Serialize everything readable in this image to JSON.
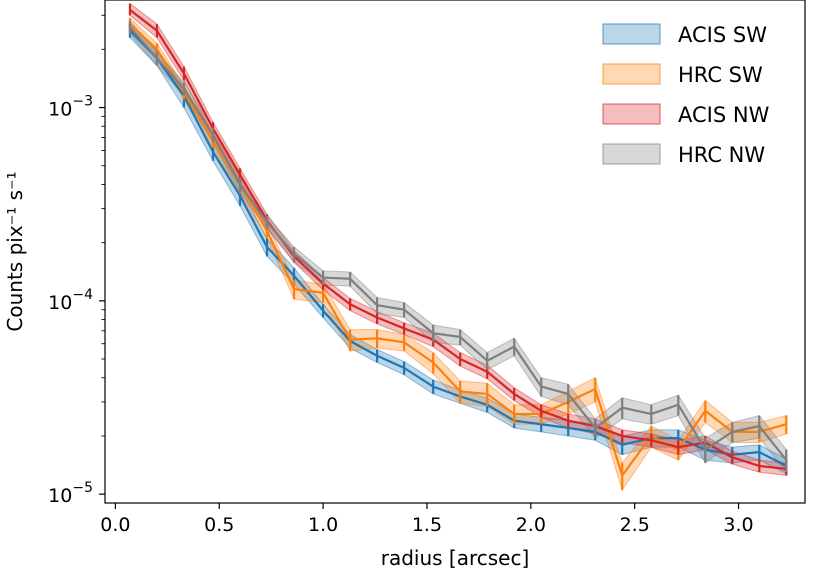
{
  "chart_data": {
    "type": "line",
    "title": "",
    "xlabel": "radius [arcsec]",
    "ylabel": "Counts pix⁻¹ s⁻¹",
    "yscale": "log",
    "xlim": [
      -0.05,
      3.32
    ],
    "ylim": [
      9e-06,
      0.0036
    ],
    "xticks": [
      0.0,
      0.5,
      1.0,
      1.5,
      2.0,
      2.5,
      3.0
    ],
    "xtick_labels": [
      "0.0",
      "0.5",
      "1.0",
      "1.5",
      "2.0",
      "2.5",
      "3.0"
    ],
    "yticks": [
      1e-05,
      0.0001,
      0.001
    ],
    "ytick_labels": [
      {
        "base": "10",
        "exp": "−5"
      },
      {
        "base": "10",
        "exp": "−4"
      },
      {
        "base": "10",
        "exp": "−3"
      }
    ],
    "grid": false,
    "legend_position": "top-right",
    "series": [
      {
        "name": "ACIS SW",
        "color": "#1f77b4",
        "x": [
          0.07,
          0.2,
          0.33,
          0.47,
          0.6,
          0.73,
          0.86,
          1.0,
          1.13,
          1.26,
          1.39,
          1.53,
          1.66,
          1.79,
          1.92,
          2.05,
          2.18,
          2.31,
          2.44,
          2.58,
          2.71,
          2.84,
          2.97,
          3.1,
          3.23
        ],
        "y": [
          0.0025,
          0.0018,
          0.00115,
          0.00059,
          0.00035,
          0.00019,
          0.000135,
          8.9e-05,
          6.2e-05,
          5.2e-05,
          4.5e-05,
          3.6e-05,
          3.2e-05,
          2.9e-05,
          2.4e-05,
          2.3e-05,
          2.2e-05,
          2.1e-05,
          1.8e-05,
          1.95e-05,
          1.95e-05,
          1.7e-05,
          1.6e-05,
          1.65e-05,
          1.4e-05
        ],
        "lower": [
          0.0023,
          0.00165,
          0.001,
          0.00053,
          0.00031,
          0.00017,
          0.000122,
          8.2e-05,
          5.7e-05,
          4.8e-05,
          4.15e-05,
          3.3e-05,
          2.95e-05,
          2.65e-05,
          2.2e-05,
          2.1e-05,
          2e-05,
          1.9e-05,
          1.6e-05,
          1.75e-05,
          1.75e-05,
          1.5e-05,
          1.45e-05,
          1.5e-05,
          1.28e-05
        ],
        "upper": [
          0.0027,
          0.00195,
          0.0013,
          0.00065,
          0.00039,
          0.00021,
          0.000148,
          9.6e-05,
          6.7e-05,
          5.6e-05,
          4.85e-05,
          3.9e-05,
          3.45e-05,
          3.15e-05,
          2.6e-05,
          2.5e-05,
          2.4e-05,
          2.3e-05,
          2e-05,
          2.15e-05,
          2.15e-05,
          1.9e-05,
          1.75e-05,
          1.8e-05,
          1.52e-05
        ]
      },
      {
        "name": "HRC SW",
        "color": "#ff7f0e",
        "x": [
          0.07,
          0.2,
          0.33,
          0.47,
          0.6,
          0.73,
          0.86,
          1.0,
          1.13,
          1.26,
          1.39,
          1.53,
          1.66,
          1.79,
          1.92,
          2.05,
          2.18,
          2.31,
          2.44,
          2.58,
          2.71,
          2.84,
          2.97,
          3.1,
          3.23
        ],
        "y": [
          0.0027,
          0.002,
          0.0012,
          0.00068,
          0.0004,
          0.00023,
          0.000115,
          0.00011,
          6.3e-05,
          6.4e-05,
          6.1e-05,
          4.8e-05,
          3.4e-05,
          3.3e-05,
          2.6e-05,
          2.6e-05,
          3e-05,
          3.5e-05,
          1.25e-05,
          2e-05,
          1.7e-05,
          2.7e-05,
          2.1e-05,
          2.1e-05,
          2.3e-05
        ],
        "lower": [
          0.0025,
          0.00185,
          0.0011,
          0.00062,
          0.00036,
          0.00021,
          0.000102,
          9.8e-05,
          5.5e-05,
          5.7e-05,
          5.5e-05,
          4.2e-05,
          2.95e-05,
          2.85e-05,
          2.3e-05,
          2.3e-05,
          2.6e-05,
          3e-05,
          1.05e-05,
          1.75e-05,
          1.5e-05,
          2.35e-05,
          1.85e-05,
          1.85e-05,
          2.05e-05
        ],
        "upper": [
          0.0029,
          0.00215,
          0.0013,
          0.00074,
          0.00044,
          0.00025,
          0.000128,
          0.000122,
          7.1e-05,
          7.1e-05,
          6.7e-05,
          5.4e-05,
          3.85e-05,
          3.75e-05,
          2.9e-05,
          2.9e-05,
          3.4e-05,
          4e-05,
          1.45e-05,
          2.25e-05,
          1.9e-05,
          3.05e-05,
          2.35e-05,
          2.35e-05,
          2.55e-05
        ]
      },
      {
        "name": "ACIS NW",
        "color": "#d62728",
        "x": [
          0.07,
          0.2,
          0.33,
          0.47,
          0.6,
          0.73,
          0.86,
          1.0,
          1.13,
          1.26,
          1.39,
          1.53,
          1.66,
          1.79,
          1.92,
          2.05,
          2.18,
          2.31,
          2.44,
          2.58,
          2.71,
          2.84,
          2.97,
          3.1,
          3.23
        ],
        "y": [
          0.0032,
          0.0025,
          0.0015,
          0.00078,
          0.00045,
          0.00026,
          0.00017,
          0.000123,
          9.6e-05,
          8.2e-05,
          7.2e-05,
          6.3e-05,
          5e-05,
          4.3e-05,
          3.3e-05,
          2.7e-05,
          2.4e-05,
          2.25e-05,
          2e-05,
          1.9e-05,
          1.75e-05,
          1.85e-05,
          1.55e-05,
          1.4e-05,
          1.35e-05
        ],
        "lower": [
          0.003,
          0.0023,
          0.00138,
          0.00072,
          0.000415,
          0.00024,
          0.000158,
          0.000114,
          8.9e-05,
          7.6e-05,
          6.7e-05,
          5.8e-05,
          4.6e-05,
          3.95e-05,
          3.05e-05,
          2.5e-05,
          2.2e-05,
          2.05e-05,
          1.85e-05,
          1.75e-05,
          1.6e-05,
          1.7e-05,
          1.43e-05,
          1.3e-05,
          1.25e-05
        ],
        "upper": [
          0.00345,
          0.0027,
          0.00163,
          0.00084,
          0.000485,
          0.00028,
          0.000182,
          0.000132,
          0.000103,
          8.8e-05,
          7.7e-05,
          6.8e-05,
          5.4e-05,
          4.65e-05,
          3.55e-05,
          2.9e-05,
          2.6e-05,
          2.45e-05,
          2.15e-05,
          2.05e-05,
          1.9e-05,
          2e-05,
          1.67e-05,
          1.5e-05,
          1.45e-05
        ]
      },
      {
        "name": "HRC NW",
        "color": "#7f7f7f",
        "x": [
          0.07,
          0.2,
          0.33,
          0.47,
          0.6,
          0.73,
          0.86,
          1.0,
          1.13,
          1.26,
          1.39,
          1.53,
          1.66,
          1.79,
          1.92,
          2.05,
          2.18,
          2.31,
          2.44,
          2.58,
          2.71,
          2.84,
          2.97,
          3.1,
          3.23
        ],
        "y": [
          0.0026,
          0.0018,
          0.00125,
          0.00072,
          0.0004,
          0.000255,
          0.000175,
          0.000132,
          0.00013,
          9.5e-05,
          9e-05,
          6.8e-05,
          6.5e-05,
          4.9e-05,
          5.8e-05,
          3.6e-05,
          3.3e-05,
          2.2e-05,
          2.8e-05,
          2.6e-05,
          2.9e-05,
          1.7e-05,
          2.1e-05,
          2.25e-05,
          1.5e-05
        ],
        "lower": [
          0.0024,
          0.00165,
          0.00115,
          0.00066,
          0.000365,
          0.000235,
          0.00016,
          0.000121,
          0.000119,
          8.6e-05,
          8.2e-05,
          6.1e-05,
          5.9e-05,
          4.4e-05,
          5.2e-05,
          3.2e-05,
          2.9e-05,
          1.95e-05,
          2.45e-05,
          2.3e-05,
          2.55e-05,
          1.45e-05,
          1.85e-05,
          1.95e-05,
          1.3e-05
        ],
        "upper": [
          0.0028,
          0.00195,
          0.00135,
          0.00078,
          0.000435,
          0.000275,
          0.00019,
          0.000143,
          0.000141,
          0.000104,
          9.8e-05,
          7.5e-05,
          7.1e-05,
          5.4e-05,
          6.4e-05,
          4e-05,
          3.7e-05,
          2.45e-05,
          3.15e-05,
          2.9e-05,
          3.25e-05,
          1.95e-05,
          2.35e-05,
          2.55e-05,
          1.7e-05
        ]
      }
    ]
  }
}
